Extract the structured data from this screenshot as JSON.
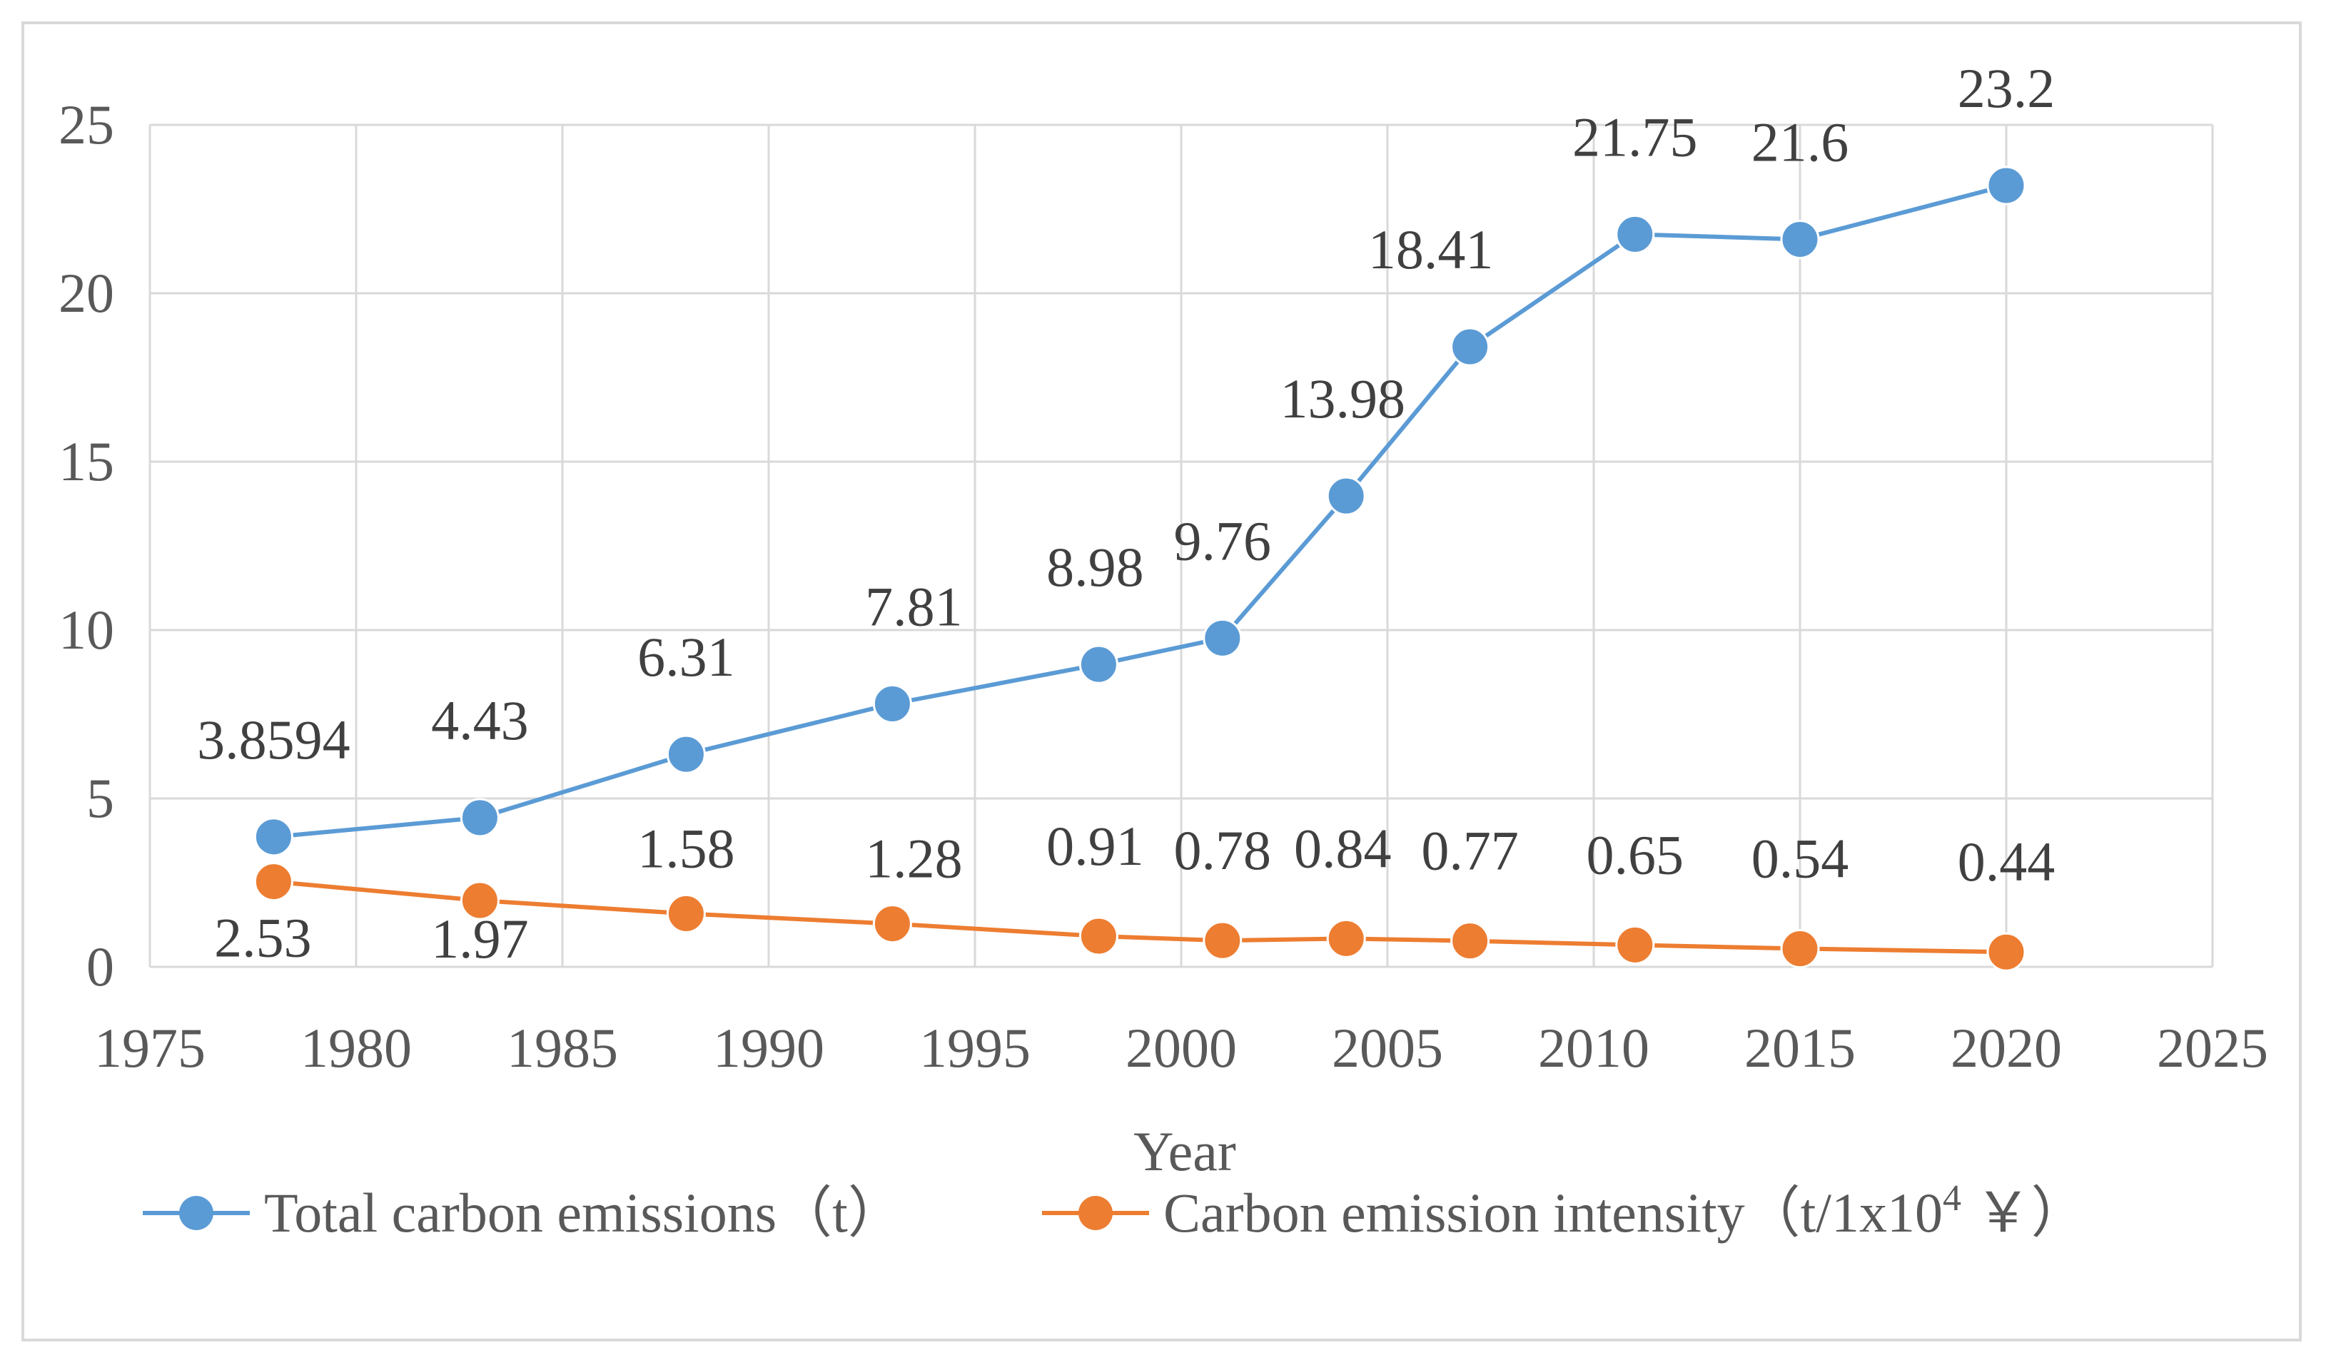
{
  "chart_data": {
    "type": "line",
    "xlabel": "Year",
    "ylabel": "",
    "xlim": [
      1975,
      2025
    ],
    "ylim": [
      0,
      25
    ],
    "x_ticks": [
      1975,
      1980,
      1985,
      1990,
      1995,
      2000,
      2005,
      2010,
      2015,
      2020,
      2025
    ],
    "y_ticks": [
      0,
      5,
      10,
      15,
      20,
      25
    ],
    "grid": true,
    "legend_position": "bottom",
    "series": [
      {
        "name": "Total carbon emissions（t）",
        "color": "#5b9bd5",
        "x": [
          1978,
          1983,
          1988,
          1993,
          1998,
          2001,
          2004,
          2007,
          2011,
          2015,
          2020
        ],
        "values": [
          3.8594,
          4.43,
          6.31,
          7.81,
          8.98,
          9.76,
          13.98,
          18.41,
          21.75,
          21.6,
          23.2
        ],
        "labels": [
          "3.8594",
          "4.43",
          "6.31",
          "7.81",
          "8.98",
          "9.76",
          "13.98",
          "18.41",
          "21.75",
          "21.6",
          "23.2"
        ]
      },
      {
        "name": "Carbon emission intensity（t/1x10⁴ ￥）",
        "legend_main": "Carbon emission intensity（t/1x10",
        "legend_sup": "4",
        "legend_tail": " ￥）",
        "color": "#ed7d31",
        "x": [
          1978,
          1983,
          1988,
          1993,
          1998,
          2001,
          2004,
          2007,
          2011,
          2015,
          2020
        ],
        "values": [
          2.53,
          1.97,
          1.58,
          1.28,
          0.91,
          0.78,
          0.84,
          0.77,
          0.65,
          0.54,
          0.44
        ],
        "labels": [
          "2.53",
          "1.97",
          "1.58",
          "1.28",
          "0.91",
          "0.78",
          "0.84",
          "0.77",
          "0.65",
          "0.54",
          "0.44"
        ]
      }
    ]
  }
}
